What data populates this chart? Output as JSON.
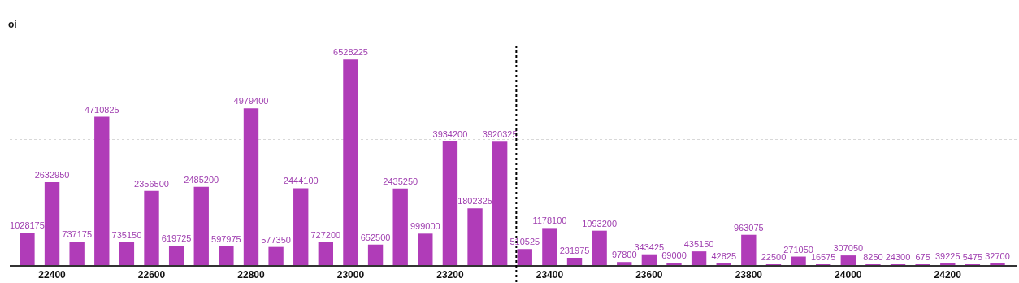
{
  "chart_data": {
    "type": "bar",
    "ylabel": "oi",
    "x": [
      22350,
      22400,
      22450,
      22500,
      22550,
      22600,
      22650,
      22700,
      22750,
      22800,
      22850,
      22900,
      22950,
      23000,
      23050,
      23100,
      23150,
      23200,
      23250,
      23300,
      23350,
      23400,
      23450,
      23500,
      23550,
      23600,
      23650,
      23700,
      23750,
      23800,
      23850,
      23900,
      23950,
      24000,
      24050,
      24100,
      24150,
      24200,
      24250,
      24300
    ],
    "values": [
      1028175,
      2632950,
      737175,
      4710825,
      735150,
      2356500,
      619725,
      2485200,
      597975,
      4979400,
      577350,
      2444100,
      727200,
      6528225,
      652500,
      2435250,
      999000,
      3934200,
      1802325,
      3920325,
      510525,
      1178100,
      231975,
      1093200,
      97800,
      343425,
      69000,
      435150,
      42825,
      963075,
      22500,
      271050,
      16575,
      307050,
      8250,
      24300,
      675,
      39225,
      5475,
      32700
    ],
    "color": "#b03cb8",
    "data_labels": true,
    "xlim": [
      22315,
      24340
    ],
    "xticks": [
      22400,
      22600,
      22800,
      23000,
      23200,
      23400,
      23600,
      23800,
      24000,
      24200
    ],
    "ylim": [
      0,
      7000000
    ],
    "yticks": [
      {
        "value": 0,
        "label": null
      },
      {
        "value": 2000000,
        "label": null
      },
      {
        "value": 4000000,
        "label": null
      },
      {
        "value": 6000000,
        "label": null
      }
    ],
    "tick_labels": "x",
    "grid": "y",
    "legend": false,
    "ref_lines": [
      {
        "axis": "x",
        "value": 23333,
        "color": "#000000",
        "line_style": "dotted"
      }
    ]
  }
}
